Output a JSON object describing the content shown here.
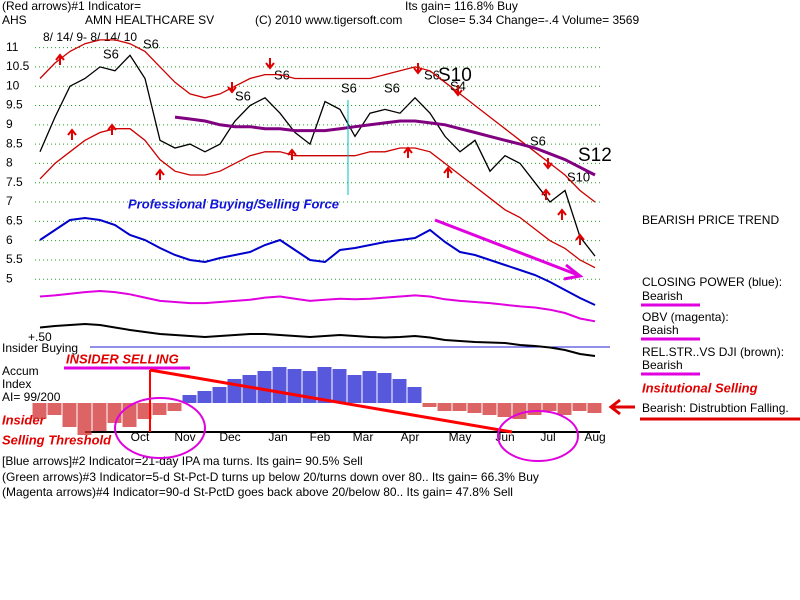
{
  "header": {
    "indicator": "(Red arrows)#1 Indicator=",
    "gain": "Its gain= 116.8% Buy",
    "symbol": "AHS",
    "company": "AMN HEALTHCARE SV",
    "copyright": "(C) 2010 www.tigersoft.com",
    "quote": "Close=  5.34  Change=-.4 Volume=  3569",
    "dates": "8/ 14/ 9- 8/ 14/ 10"
  },
  "chart_data": {
    "type": "line",
    "months": [
      "Oct",
      "Nov",
      "Dec",
      "Jan",
      "Feb",
      "Mar",
      "Apr",
      "May",
      "Jun",
      "Jul",
      "Aug"
    ],
    "ylim": [
      4.8,
      11.3
    ],
    "yticks": [
      11,
      10.5,
      10,
      9.5,
      9,
      8.5,
      8,
      7.5,
      7,
      6.5,
      6,
      5.5,
      5
    ],
    "grid": true,
    "series": [
      {
        "color": "#000000",
        "values": [
          8.3,
          9.2,
          10.0,
          10.2,
          10.5,
          10.4,
          10.8,
          10.2,
          8.6,
          8.4,
          8.5,
          8.3,
          8.5,
          9.1,
          9.5,
          9.7,
          9.3,
          8.8,
          8.5,
          9.6,
          9.4,
          8.7,
          9.3,
          9.4,
          9.3,
          9.7,
          9.3,
          8.7,
          8.3,
          8.6,
          7.8,
          8.2,
          8.0,
          7.5,
          7.0,
          7.3,
          6.1,
          5.6
        ]
      },
      {
        "color": "#cc0000",
        "values": [
          10.2,
          10.6,
          10.9,
          11.1,
          11.2,
          11.2,
          11.1,
          10.9,
          10.5,
          10.1,
          9.8,
          9.7,
          9.8,
          10.0,
          10.2,
          10.3,
          10.3,
          10.2,
          10.2,
          10.2,
          10.2,
          10.2,
          10.2,
          10.3,
          10.4,
          10.5,
          10.4,
          10.1,
          9.8,
          9.5,
          9.2,
          8.9,
          8.6,
          8.3,
          8.0,
          7.7,
          7.3,
          7.0
        ]
      },
      {
        "color": "#cc0000",
        "values": [
          7.6,
          8.0,
          8.3,
          8.6,
          8.8,
          8.9,
          8.9,
          8.6,
          8.1,
          7.8,
          7.7,
          7.7,
          7.8,
          8.0,
          8.2,
          8.3,
          8.3,
          8.2,
          8.2,
          8.2,
          8.2,
          8.2,
          8.3,
          8.3,
          8.4,
          8.4,
          8.3,
          8.0,
          7.7,
          7.4,
          7.1,
          6.8,
          6.6,
          6.3,
          6.0,
          5.8,
          5.5,
          5.3
        ]
      },
      {
        "color": "#800080",
        "values": [
          null,
          null,
          null,
          null,
          null,
          null,
          null,
          null,
          null,
          9.2,
          9.15,
          9.1,
          9.0,
          8.95,
          8.95,
          8.9,
          8.9,
          8.85,
          8.85,
          8.85,
          8.9,
          8.95,
          9.0,
          9.05,
          9.1,
          9.1,
          9.05,
          9.0,
          8.9,
          8.8,
          8.7,
          8.6,
          8.5,
          8.4,
          8.25,
          8.1,
          7.9,
          7.7
        ]
      }
    ],
    "indicators": {
      "closing_power": {
        "color": "#0000cc",
        "values": [
          70,
          80,
          90,
          92,
          90,
          85,
          75,
          70,
          62,
          55,
          50,
          48,
          52,
          55,
          58,
          65,
          70,
          60,
          50,
          48,
          60,
          62,
          65,
          68,
          70,
          72,
          80,
          68,
          58,
          55,
          50,
          45,
          40,
          35,
          28,
          20,
          12,
          5
        ]
      },
      "obv": {
        "color": "#e000e0",
        "values": [
          70,
          72,
          75,
          78,
          80,
          78,
          74,
          68,
          62,
          60,
          58,
          58,
          60,
          62,
          64,
          68,
          70,
          66,
          62,
          64,
          66,
          65,
          66,
          68,
          70,
          72,
          70,
          65,
          62,
          60,
          58,
          55,
          52,
          50,
          46,
          40,
          30,
          25
        ]
      },
      "rel_str": {
        "color": "#000000",
        "values": [
          75,
          78,
          80,
          82,
          80,
          75,
          70,
          66,
          62,
          60,
          58,
          56,
          58,
          60,
          62,
          62,
          60,
          58,
          56,
          58,
          60,
          58,
          56,
          55,
          56,
          58,
          55,
          50,
          48,
          46,
          45,
          44,
          40,
          38,
          35,
          30,
          22,
          18
        ]
      },
      "accum_index": {
        "up_color": "#2020d0",
        "down_color": "#d03030",
        "values": [
          -40,
          -30,
          -60,
          -80,
          -70,
          -50,
          -60,
          -40,
          -30,
          -20,
          20,
          30,
          40,
          60,
          70,
          80,
          90,
          85,
          80,
          90,
          85,
          70,
          80,
          75,
          60,
          40,
          -10,
          -20,
          -20,
          -25,
          -30,
          -35,
          -40,
          -30,
          -20,
          -30,
          -20,
          -25
        ]
      }
    }
  },
  "annotations": {
    "signals": [
      "S6",
      "S6",
      "S6",
      "S6",
      "S6",
      "S6",
      "S6",
      "S6"
    ],
    "s10": "S10",
    "s4": "S4",
    "s12": "S12",
    "s10b": "S10",
    "force": "Professional Buying/Selling Force",
    "trend": "BEARISH PRICE TREND",
    "cp_label": "CLOSING POWER (blue):",
    "cp_value": "Bearish",
    "obv_label": "OBV (magenta):",
    "obv_value": "Beaish",
    "rs_label": "REL.STR..VS DJI (brown):",
    "rs_value": "Bearish",
    "insider_buying": "Insider Buying",
    "plus50": "+.50",
    "insider_selling": "INSIDER SELLING",
    "accum": "Accum",
    "index": "Index",
    "ai": "AI= 99/200",
    "insider": "Insider",
    "threshold": "Selling Threshold",
    "inst_selling": "Insitutional Selling",
    "distribution": "Bearish: Distrubtion Falling."
  },
  "footer": [
    "[Blue arrows]#2 Indicator=21-day IPA ma turns. Its gain= 90.5% Sell",
    "(Green arrows)#3 Indicator=5-d St-Pct-D turns up below 20/turns down over 80..  Its gain= 66.3% Buy",
    "(Magenta arrows)#4 Indicator=90-d St-PctD goes back above 20/below 80..  Its gain= 47.8% Sell"
  ]
}
